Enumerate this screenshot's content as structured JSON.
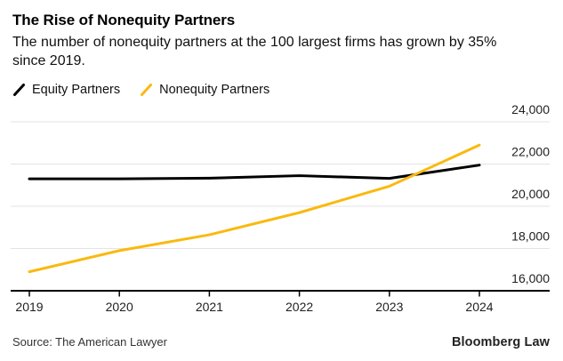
{
  "header": {
    "title": "The Rise of Nonequity Partners",
    "subtitle": "The number of nonequity partners at the 100 largest firms has grown by 35% since 2019."
  },
  "legend": {
    "items": [
      {
        "label": "Equity Partners",
        "color": "#000000"
      },
      {
        "label": "Nonequity Partners",
        "color": "#FAB90F"
      }
    ]
  },
  "chart_data": {
    "type": "line",
    "categories": [
      "2019",
      "2020",
      "2021",
      "2022",
      "2023",
      "2024"
    ],
    "series": [
      {
        "name": "Equity Partners",
        "color": "#000000",
        "values": [
          21300,
          21300,
          21330,
          21450,
          21320,
          21950
        ]
      },
      {
        "name": "Nonequity Partners",
        "color": "#FAB90F",
        "values": [
          16900,
          17900,
          18650,
          19700,
          20950,
          22900
        ]
      }
    ],
    "title": "The Rise of Nonequity Partners",
    "subtitle": "The number of nonequity partners at the 100 largest firms has grown by 35% since 2019.",
    "xlabel": "",
    "ylabel": "",
    "ylim": [
      16000,
      24000
    ],
    "yticks": [
      16000,
      18000,
      20000,
      22000,
      24000
    ],
    "ytick_labels": [
      "16,000",
      "18,000",
      "20,000",
      "22,000",
      "24,000"
    ],
    "grid": "horizontal",
    "legend_position": "top-left",
    "y_axis_side": "right"
  },
  "footer": {
    "source": "Source: The American Lawyer",
    "brand": "Bloomberg Law"
  },
  "colors": {
    "accent_yellow": "#FAB90F",
    "line_black": "#000000",
    "gridline": "#E3E3E3",
    "axis": "#000000",
    "tick_text": "#1F1F1F"
  }
}
